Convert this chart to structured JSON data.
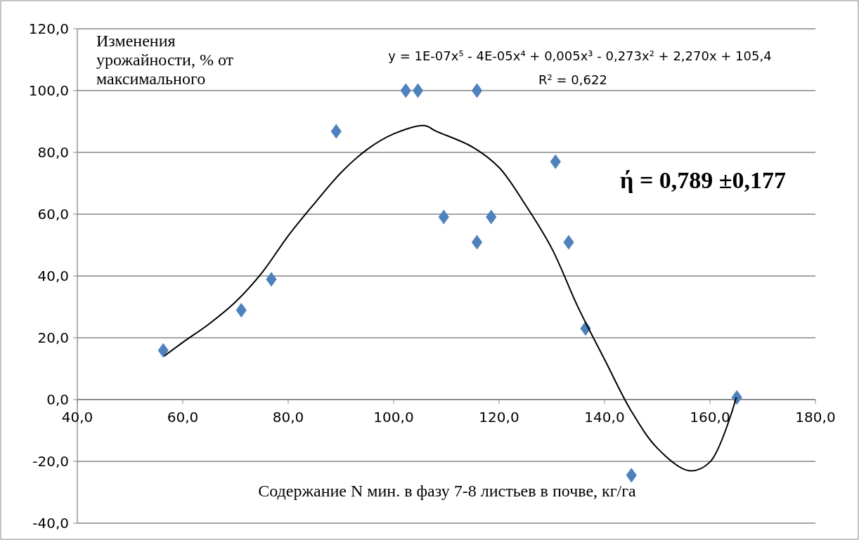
{
  "chart_data": {
    "type": "scatter",
    "xlabel": "Содержание N мин. в фазу 7-8 листьев в почве, кг/га",
    "ylabel": "Изменения урожайности, % от максимального",
    "annotations": [
      "y = 1E-07x⁵ - 4E-05x⁴ + 0,005x³ - 0,273x² + 2,270x + 105,4",
      "R² = 0,622",
      "ή = 0,789 ±0,177"
    ],
    "xlim": [
      40,
      180
    ],
    "ylim": [
      -40,
      120
    ],
    "xticks": [
      {
        "value": 40,
        "label": "40,0"
      },
      {
        "value": 60,
        "label": "60,0"
      },
      {
        "value": 80,
        "label": "80,0"
      },
      {
        "value": 100,
        "label": "100,0"
      },
      {
        "value": 120,
        "label": "120,0"
      },
      {
        "value": 140,
        "label": "140,0"
      },
      {
        "value": 160,
        "label": "160,0"
      },
      {
        "value": 180,
        "label": "180,0"
      }
    ],
    "yticks": [
      {
        "value": -40,
        "label": "-40,0"
      },
      {
        "value": -20,
        "label": "-20,0"
      },
      {
        "value": 0,
        "label": "0,0"
      },
      {
        "value": 20,
        "label": "20,0"
      },
      {
        "value": 40,
        "label": "40,0"
      },
      {
        "value": 60,
        "label": "60,0"
      },
      {
        "value": 80,
        "label": "80,0"
      },
      {
        "value": 100,
        "label": "100,0"
      },
      {
        "value": 120,
        "label": "120,0"
      }
    ],
    "grid": "y",
    "marker": "diamond",
    "series": [
      {
        "color": "#4f81bd",
        "x": [
          56.3,
          71.1,
          76.8,
          89.1,
          102.3,
          104.6,
          109.5,
          115.8,
          115.8,
          118.5,
          130.7,
          133.2,
          136.4,
          145.1,
          165.1
        ],
        "values": [
          15.9,
          28.9,
          38.9,
          86.8,
          100,
          100,
          59.1,
          100,
          50.9,
          59.1,
          77,
          50.9,
          23,
          -24.5,
          0.7
        ]
      },
      {
        "type": "line",
        "color": "#000000",
        "line_style": "solid",
        "marker": "none",
        "x": [
          56.5,
          60,
          65,
          70,
          75,
          80,
          85,
          90,
          95,
          100,
          105.8,
          108,
          115,
          120,
          125,
          130,
          135,
          140,
          145,
          150,
          156,
          160,
          165
        ],
        "values": [
          14.1,
          18.5,
          24.5,
          31.6,
          41,
          53,
          63.5,
          73.4,
          81,
          86,
          88.7,
          86.9,
          81.7,
          75.1,
          63,
          48.9,
          29.8,
          13,
          -3.5,
          -15.7,
          -23,
          -20.2,
          0.7
        ]
      }
    ]
  }
}
